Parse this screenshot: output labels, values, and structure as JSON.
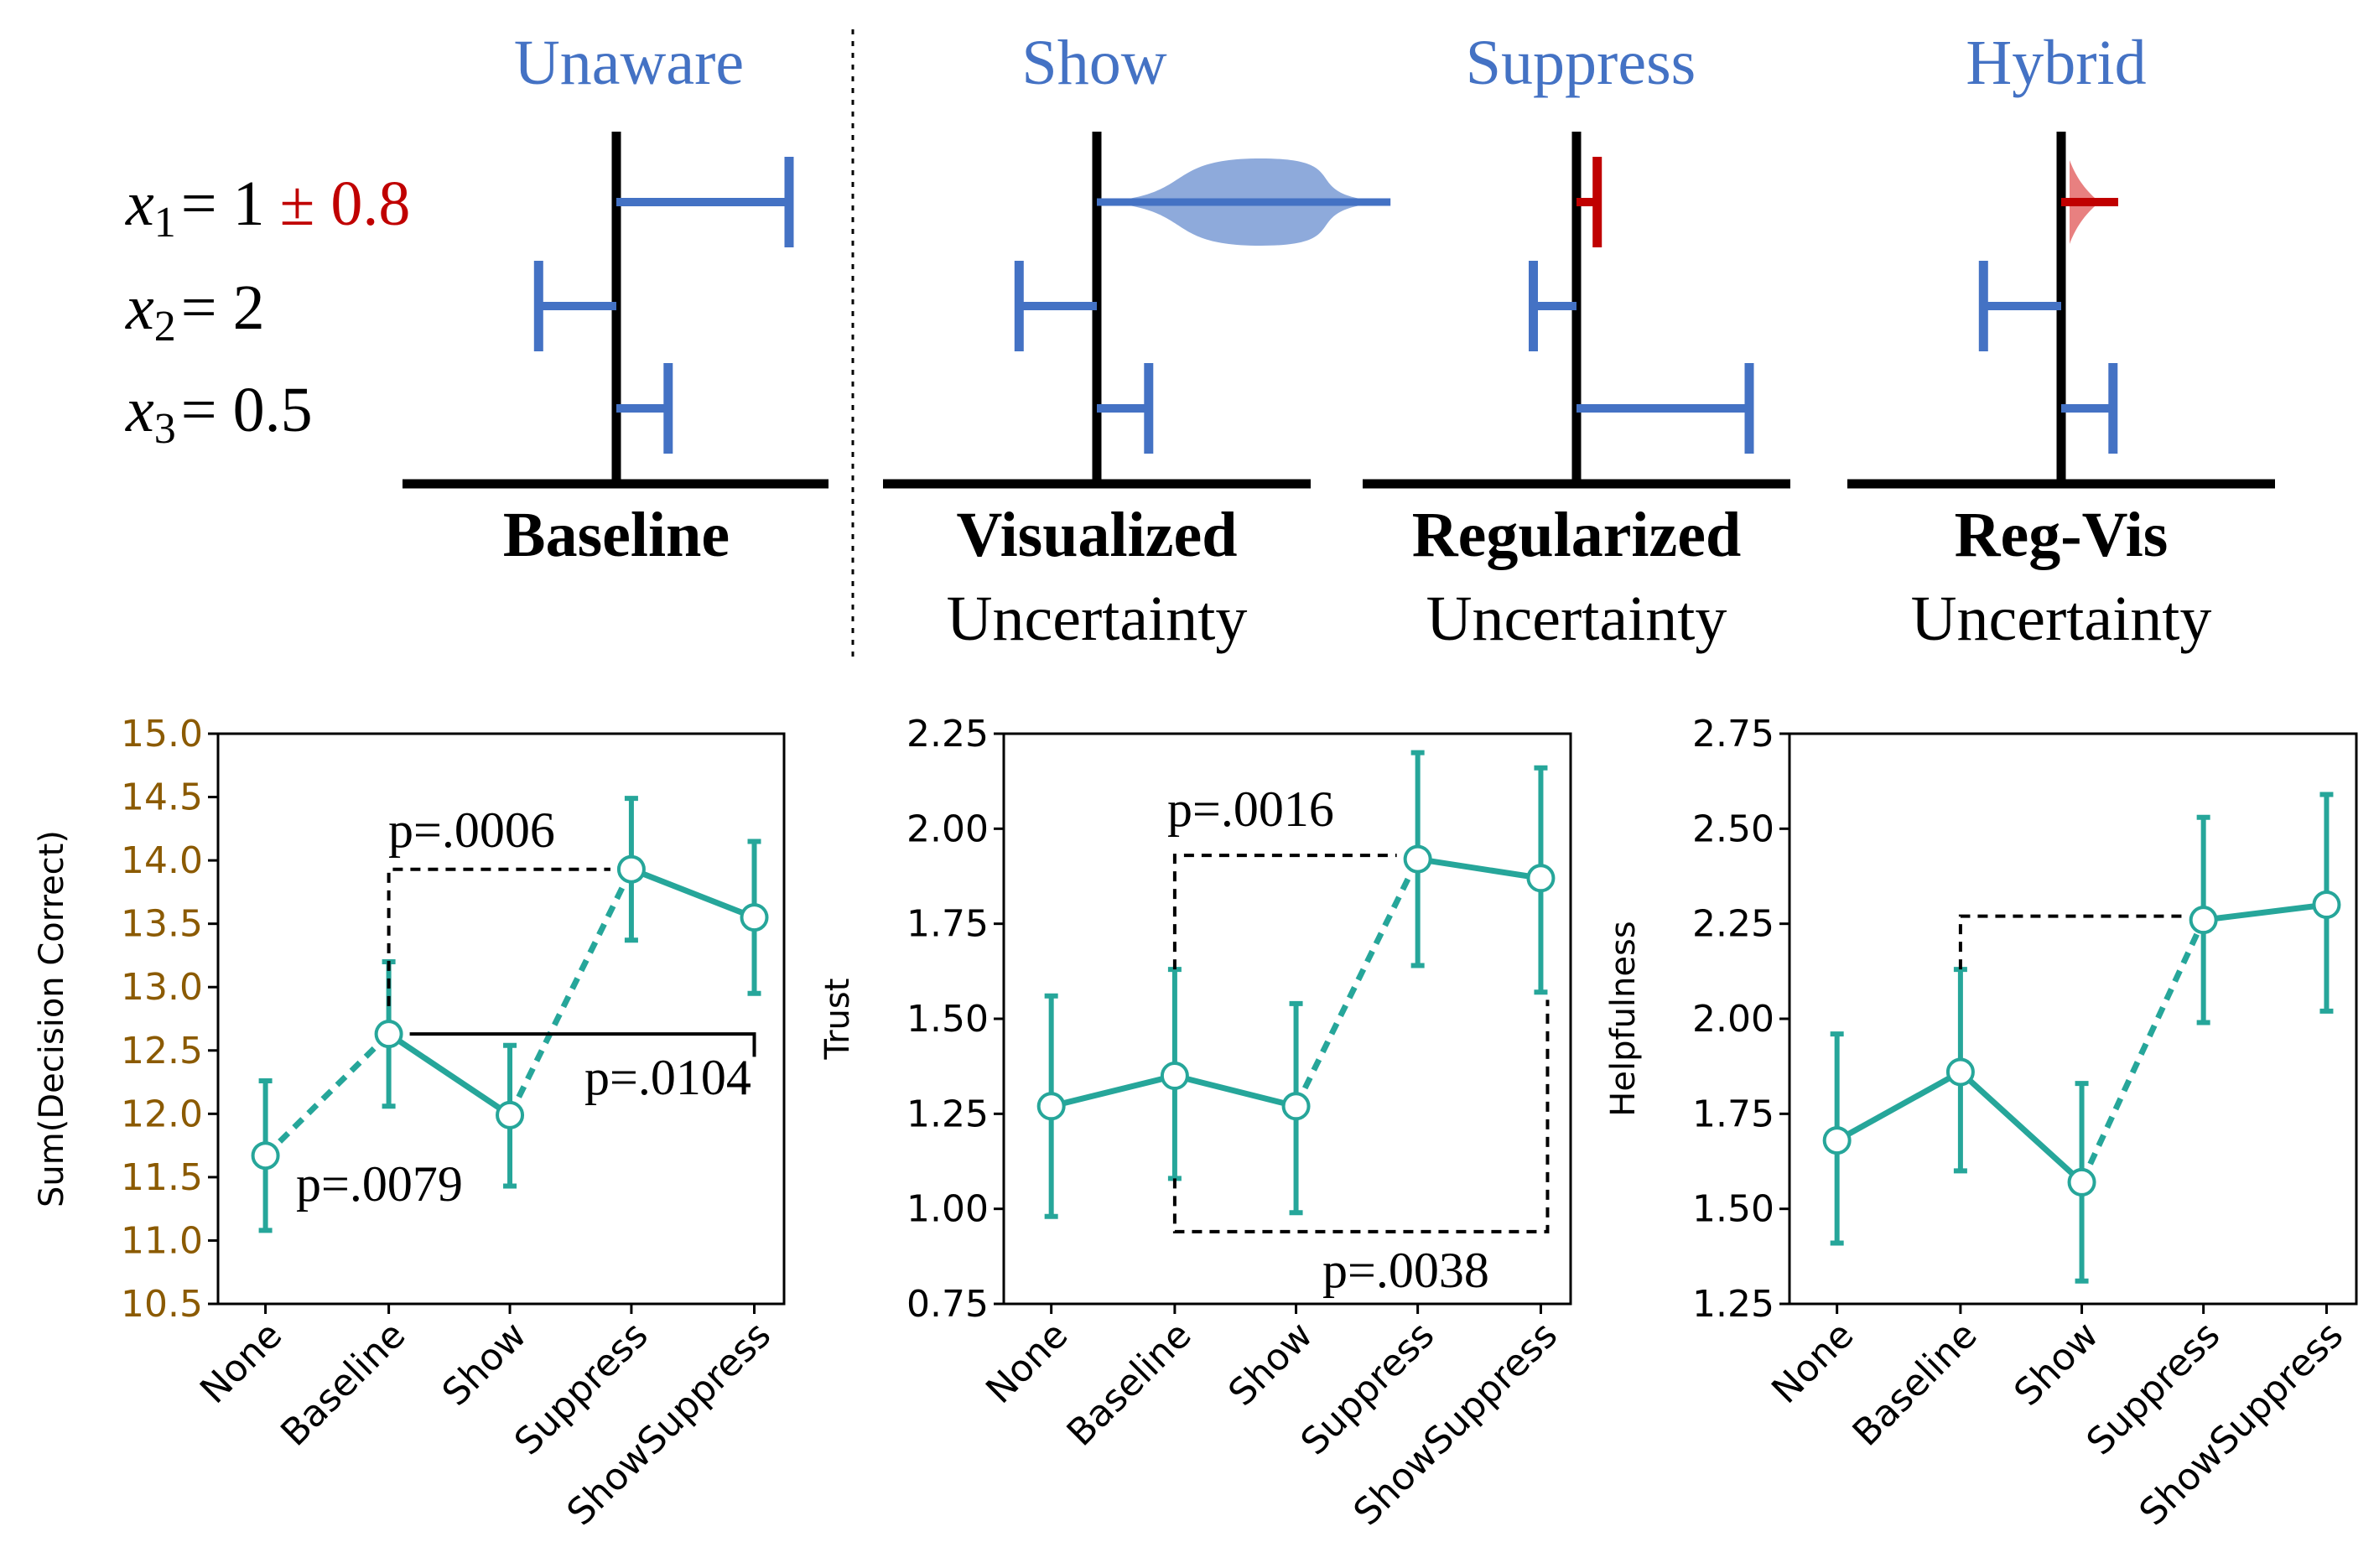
{
  "top": {
    "condition_titles": [
      "Unaware",
      "Show",
      "Suppress",
      "Hybrid"
    ],
    "features": [
      {
        "sym": "x",
        "sub": "1",
        "eq": "= 1",
        "extra": "± 0.8",
        "value": 1,
        "uncertainty": 0.8
      },
      {
        "sym": "x",
        "sub": "2",
        "eq": "= 2",
        "extra": "",
        "value": 2
      },
      {
        "sym": "x",
        "sub": "3",
        "eq": "= 0.5",
        "extra": "",
        "value": 0.5
      }
    ],
    "panels": [
      {
        "bold": "Baseline",
        "sub": "",
        "attributions": [
          1.0,
          -0.45,
          0.3
        ]
      },
      {
        "bold": "Visualized",
        "sub": "Uncertainty",
        "attributions": [
          1.7,
          -0.45,
          0.3
        ],
        "violin_row": 0
      },
      {
        "bold": "Regularized",
        "sub": "Uncertainty",
        "attributions": [
          0.12,
          -0.25,
          1.0
        ],
        "red_row": 0
      },
      {
        "bold": "Reg-Vis",
        "sub": "Uncertainty",
        "attributions": [
          0.2,
          -0.45,
          0.3
        ],
        "red_row": 0,
        "red_violin_row": 0
      }
    ],
    "colors": {
      "bar": "#4472c4",
      "violin": "#8eaadb",
      "red": "#c00000",
      "red_violin": "#e88080",
      "title": "#4472c4"
    }
  },
  "chart_data": [
    {
      "type": "line",
      "categories": [
        "None",
        "Baseline",
        "Show",
        "Suppress",
        "ShowSuppress"
      ],
      "ylabel": "Sum(Decision Correct)",
      "ylim": [
        10.5,
        15.0
      ],
      "yticks": [
        "10.5",
        "11.0",
        "11.5",
        "12.0",
        "12.5",
        "13.0",
        "13.5",
        "14.0",
        "14.5",
        "15.0"
      ],
      "ytick_color": "#8b5a00",
      "values": [
        11.67,
        12.63,
        11.99,
        13.93,
        13.55
      ],
      "err_low": [
        11.08,
        12.06,
        11.43,
        13.37,
        12.95
      ],
      "err_high": [
        12.26,
        13.2,
        12.54,
        14.49,
        14.15
      ],
      "segments": [
        "dashed",
        "solid",
        "dashed",
        "solid"
      ],
      "annotations": [
        "p=.0006",
        "p=.0079",
        "p=.0104"
      ]
    },
    {
      "type": "line",
      "categories": [
        "None",
        "Baseline",
        "Show",
        "Suppress",
        "ShowSuppress"
      ],
      "ylabel": "Trust",
      "ylim": [
        0.75,
        2.25
      ],
      "yticks": [
        "0.75",
        "1.00",
        "1.25",
        "1.50",
        "1.75",
        "2.00",
        "2.25"
      ],
      "ytick_color": "#000000",
      "values": [
        1.27,
        1.35,
        1.27,
        1.92,
        1.87
      ],
      "err_low": [
        0.98,
        1.08,
        0.99,
        1.64,
        1.57
      ],
      "err_high": [
        1.56,
        1.63,
        1.54,
        2.2,
        2.16
      ],
      "segments": [
        "solid",
        "solid",
        "dashed",
        "solid"
      ],
      "annotations": [
        "p=.0016",
        "p=.0038"
      ]
    },
    {
      "type": "line",
      "categories": [
        "None",
        "Baseline",
        "Show",
        "Suppress",
        "ShowSuppress"
      ],
      "ylabel": "Helpfulness",
      "ylim": [
        1.25,
        2.75
      ],
      "yticks": [
        "1.25",
        "1.50",
        "1.75",
        "2.00",
        "2.25",
        "2.50",
        "2.75"
      ],
      "ytick_color": "#000000",
      "values": [
        1.68,
        1.86,
        1.57,
        2.26,
        2.3
      ],
      "err_low": [
        1.41,
        1.6,
        1.31,
        1.99,
        2.02
      ],
      "err_high": [
        1.96,
        2.13,
        1.83,
        2.53,
        2.59
      ],
      "segments": [
        "solid",
        "solid",
        "dashed",
        "solid"
      ],
      "annotations": []
    }
  ],
  "colors": {
    "line": "#26a69a"
  }
}
